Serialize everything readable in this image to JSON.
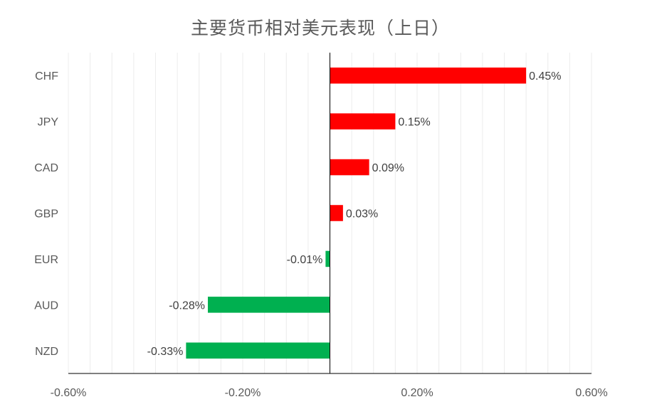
{
  "chart_data": {
    "type": "bar",
    "orientation": "horizontal",
    "title": "主要货币相对美元表现（上日）",
    "categories": [
      "CHF",
      "JPY",
      "CAD",
      "GBP",
      "EUR",
      "AUD",
      "NZD"
    ],
    "values": [
      0.45,
      0.15,
      0.09,
      0.03,
      -0.01,
      -0.28,
      -0.33
    ],
    "data_labels": [
      "0.45%",
      "0.15%",
      "0.09%",
      "0.03%",
      "-0.01%",
      "-0.28%",
      "-0.33%"
    ],
    "xlim": [
      -0.6,
      0.6
    ],
    "x_ticks": [
      -0.6,
      -0.2,
      0.2,
      0.6
    ],
    "x_tick_labels": [
      "-0.60%",
      "-0.20%",
      "0.20%",
      "0.60%"
    ],
    "grid": true,
    "legend": "none",
    "colors": {
      "positive": "#ff0000",
      "negative": "#00b050",
      "grid": "#ececec",
      "axis": "#000000"
    }
  }
}
